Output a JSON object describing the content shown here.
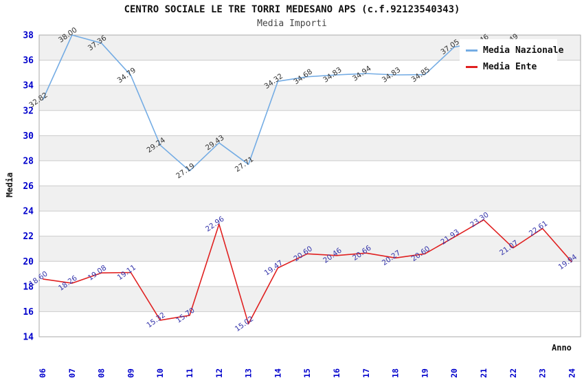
{
  "title": "CENTRO SOCIALE LE TRE TORRI MEDESANO APS (c.f.92123540343)",
  "subtitle": "Media Importi",
  "colors": {
    "national_line": "#74ACE4",
    "entity_line": "#E02020",
    "axis_tick_text": "#0000CC",
    "national_label_text": "#333333",
    "entity_label_text": "#3333AA",
    "band_gray": "#F0F0F0",
    "gridline": "#CCCCCC",
    "plot_border": "#AAAAAA"
  },
  "legend": {
    "entries": [
      {
        "label": "Media Nazionale",
        "color": "#74ACE4"
      },
      {
        "label": "Media Ente",
        "color": "#E02020"
      }
    ]
  },
  "chart_data": {
    "type": "line",
    "title": "CENTRO SOCIALE LE TRE TORRI MEDESANO APS (c.f.92123540343)",
    "subtitle": "Media Importi",
    "xlabel": "Anno",
    "ylabel": "Media",
    "ylim": [
      14,
      38
    ],
    "ytick_step": 2,
    "grid": true,
    "legend_position": "top-right",
    "categories": [
      2006,
      2007,
      2008,
      2009,
      2010,
      2011,
      2012,
      2013,
      2014,
      2015,
      2016,
      2017,
      2018,
      2019,
      2020,
      2021,
      2022,
      2023,
      2024
    ],
    "series": [
      {
        "name": "Media Nazionale",
        "color": "#74ACE4",
        "label_color": "#333333",
        "values": [
          32.82,
          38.0,
          37.36,
          34.79,
          29.24,
          27.19,
          29.43,
          27.71,
          34.32,
          34.68,
          34.83,
          34.94,
          34.83,
          34.85,
          37.05,
          37.46,
          37.49,
          null,
          null
        ]
      },
      {
        "name": "Media Ente",
        "color": "#E02020",
        "label_color": "#3333AA",
        "values": [
          18.6,
          18.26,
          19.08,
          19.11,
          15.32,
          15.7,
          22.96,
          15.02,
          19.47,
          20.6,
          20.46,
          20.66,
          20.27,
          20.6,
          21.93,
          23.3,
          21.07,
          22.61,
          19.94
        ]
      }
    ]
  }
}
